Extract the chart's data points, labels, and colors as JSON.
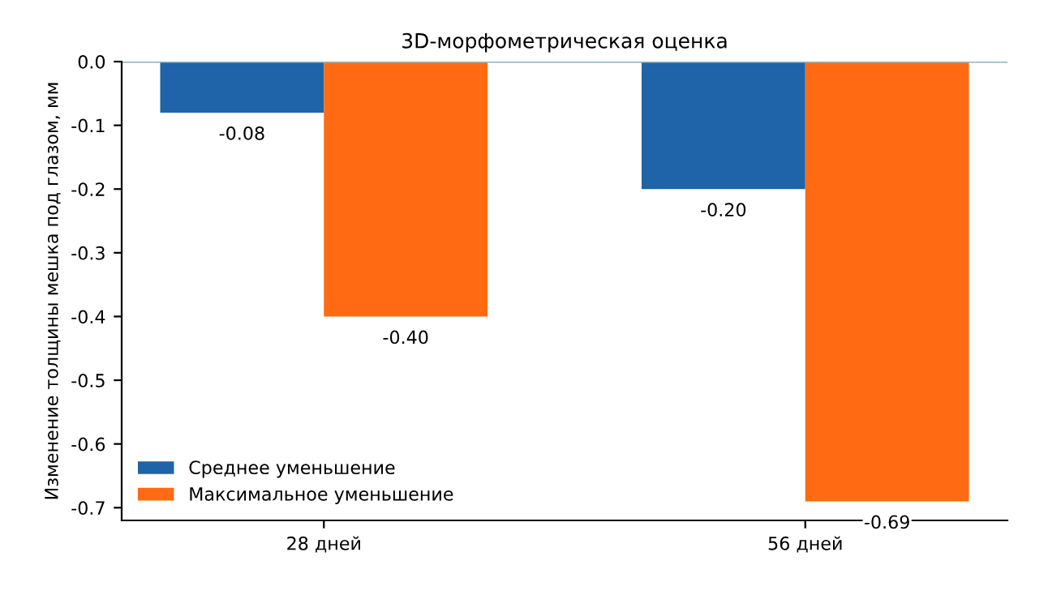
{
  "chart_data": {
    "type": "bar",
    "title": "3D-морфометрическая оценка",
    "ylabel": "Изменение толщины мешка под глазом, мм",
    "categories": [
      "28 дней",
      "56 дней"
    ],
    "series": [
      {
        "name": "Среднее уменьшение",
        "color": "#1f63a8",
        "values": [
          -0.08,
          -0.2
        ],
        "value_labels": [
          "-0.08",
          "-0.20"
        ]
      },
      {
        "name": "Максимальное уменьшение",
        "color": "#ff6a13",
        "values": [
          -0.4,
          -0.69
        ],
        "value_labels": [
          "-0.40",
          "-0.69"
        ]
      }
    ],
    "ylim": [
      -0.72,
      0
    ],
    "yticks": [
      {
        "value": 0,
        "label": "0.0"
      },
      {
        "value": -0.1,
        "label": "-0.1"
      },
      {
        "value": -0.2,
        "label": "-0.2"
      },
      {
        "value": -0.3,
        "label": "-0.3"
      },
      {
        "value": -0.4,
        "label": "-0.4"
      },
      {
        "value": -0.5,
        "label": "-0.5"
      },
      {
        "value": -0.6,
        "label": "-0.6"
      },
      {
        "value": -0.7,
        "label": "-0.7"
      }
    ],
    "ref_lines": [
      {
        "axis": "y",
        "value": 0,
        "color": "#8fb3bb"
      }
    ],
    "grid": false,
    "legend": "bottom left"
  }
}
